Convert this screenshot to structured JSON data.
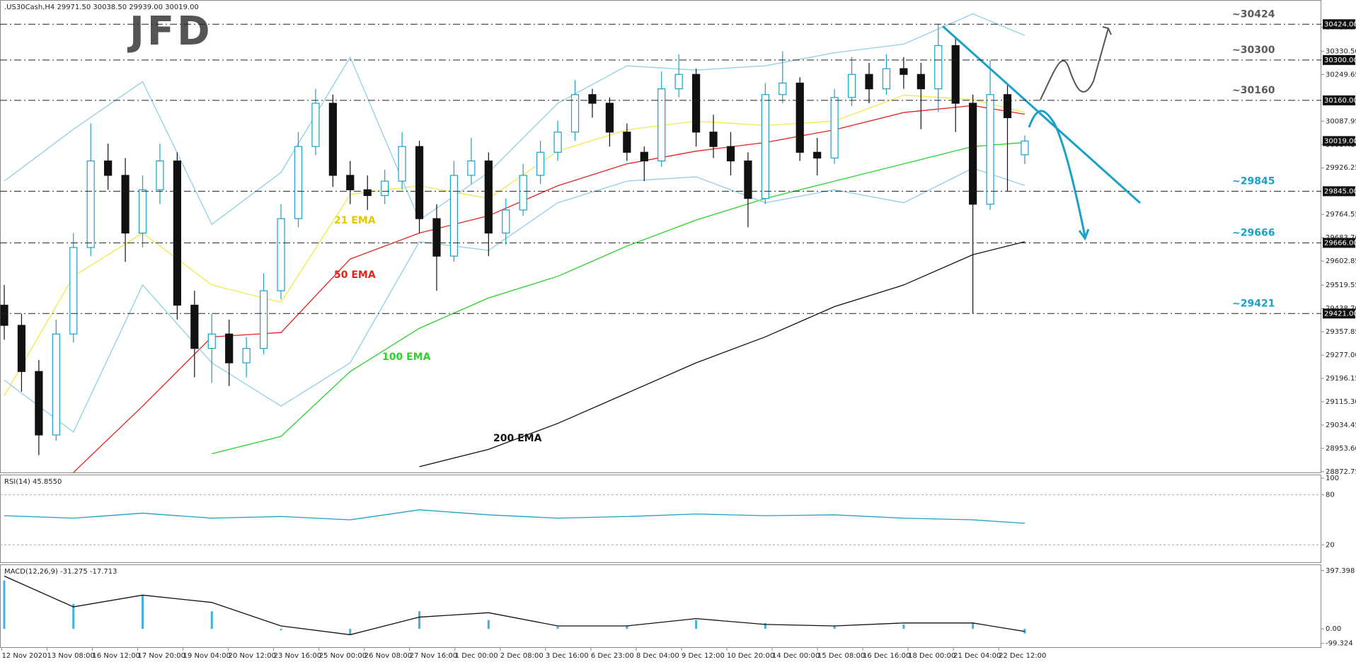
{
  "chart_data": [
    {
      "type": "candlestick",
      "header": ".US30Cash,H4  29971.50 30038.50 29939.00 30019.00",
      "logo": "JFD",
      "ylim": [
        28870,
        30508
      ],
      "yticks": [
        {
          "value": 30413.5,
          "label": "30413.50"
        },
        {
          "value": 30330.5,
          "label": "30330.50"
        },
        {
          "value": 30249.65,
          "label": "30249.65"
        },
        {
          "value": 30087.95,
          "label": "30087.95"
        },
        {
          "value": 30007.1,
          "label": "30007.10"
        },
        {
          "value": 29926.25,
          "label": "29926.25"
        },
        {
          "value": 29764.55,
          "label": "29764.55"
        },
        {
          "value": 29683.7,
          "label": "29683.70"
        },
        {
          "value": 29602.85,
          "label": "29602.85"
        },
        {
          "value": 29519.55,
          "label": "29519.55"
        },
        {
          "value": 29438.7,
          "label": "29438.70"
        },
        {
          "value": 29357.85,
          "label": "29357.85"
        },
        {
          "value": 29277.0,
          "label": "29277.00"
        },
        {
          "value": 29196.15,
          "label": "29196.15"
        },
        {
          "value": 29115.3,
          "label": "29115.30"
        },
        {
          "value": 29034.45,
          "label": "29034.45"
        },
        {
          "value": 28953.6,
          "label": "28953.60"
        },
        {
          "value": 28872.75,
          "label": "28872.75"
        }
      ],
      "up_color": "#1ba1c7",
      "down_color": "#111111",
      "candles": [
        [
          29450,
          29520,
          29330,
          29380
        ],
        [
          29380,
          29420,
          29150,
          29220
        ],
        [
          29220,
          29260,
          28930,
          29000
        ],
        [
          29000,
          29400,
          28980,
          29350
        ],
        [
          29350,
          29700,
          29320,
          29650
        ],
        [
          29650,
          30080,
          29620,
          29950
        ],
        [
          29950,
          30010,
          29850,
          29900
        ],
        [
          29900,
          29960,
          29600,
          29700
        ],
        [
          29700,
          29900,
          29650,
          29850
        ],
        [
          29850,
          30010,
          29800,
          29950
        ],
        [
          29950,
          29980,
          29400,
          29450
        ],
        [
          29450,
          29500,
          29200,
          29300
        ],
        [
          29300,
          29420,
          29180,
          29350
        ],
        [
          29350,
          29400,
          29170,
          29250
        ],
        [
          29250,
          29340,
          29200,
          29300
        ],
        [
          29300,
          29560,
          29280,
          29500
        ],
        [
          29500,
          29800,
          29470,
          29750
        ],
        [
          29750,
          30050,
          29720,
          30000
        ],
        [
          30000,
          30200,
          29970,
          30150
        ],
        [
          30150,
          30180,
          29860,
          29900
        ],
        [
          29900,
          29950,
          29800,
          29850
        ],
        [
          29850,
          29900,
          29780,
          29830
        ],
        [
          29830,
          29920,
          29800,
          29880
        ],
        [
          29880,
          30050,
          29850,
          30000
        ],
        [
          30000,
          30020,
          29700,
          29750
        ],
        [
          29750,
          29800,
          29500,
          29620
        ],
        [
          29620,
          29950,
          29600,
          29900
        ],
        [
          29900,
          30030,
          29870,
          29950
        ],
        [
          29950,
          29980,
          29620,
          29700
        ],
        [
          29700,
          29820,
          29660,
          29780
        ],
        [
          29780,
          29940,
          29760,
          29900
        ],
        [
          29900,
          30020,
          29870,
          29980
        ],
        [
          29980,
          30090,
          29950,
          30050
        ],
        [
          30050,
          30230,
          30020,
          30180
        ],
        [
          30180,
          30200,
          30100,
          30150
        ],
        [
          30150,
          30170,
          30000,
          30050
        ],
        [
          30050,
          30080,
          29950,
          29980
        ],
        [
          29980,
          30000,
          29880,
          29950
        ],
        [
          29950,
          30260,
          29930,
          30200
        ],
        [
          30200,
          30320,
          30170,
          30250
        ],
        [
          30250,
          30270,
          30000,
          30050
        ],
        [
          30050,
          30110,
          29960,
          30000
        ],
        [
          30000,
          30050,
          29900,
          29950
        ],
        [
          29950,
          29980,
          29720,
          29820
        ],
        [
          29820,
          30220,
          29800,
          30180
        ],
        [
          30180,
          30330,
          30150,
          30220
        ],
        [
          30220,
          30240,
          29950,
          29980
        ],
        [
          29980,
          30030,
          29900,
          29960
        ],
        [
          29960,
          30200,
          29940,
          30170
        ],
        [
          30170,
          30310,
          30140,
          30250
        ],
        [
          30250,
          30290,
          30150,
          30200
        ],
        [
          30200,
          30320,
          30180,
          30270
        ],
        [
          30270,
          30310,
          30200,
          30250
        ],
        [
          30250,
          30290,
          30060,
          30200
        ],
        [
          30200,
          30424,
          30120,
          30350
        ],
        [
          30350,
          30380,
          30050,
          30150
        ],
        [
          30150,
          30180,
          29421,
          29800
        ],
        [
          29800,
          30300,
          29780,
          30180
        ],
        [
          30180,
          30220,
          29845,
          30100
        ],
        [
          29971.5,
          30038.5,
          29939,
          30019
        ]
      ],
      "line_x": [
        0,
        4,
        8,
        12,
        16,
        20,
        24,
        28,
        32,
        36,
        40,
        44,
        48,
        52,
        56,
        59
      ],
      "series": [
        {
          "name": "21 EMA",
          "color": "#f2e84a",
          "values": [
            29136,
            29550,
            29700,
            29520,
            29460,
            29834,
            29864,
            29820,
            29984,
            30058,
            30088,
            30073,
            30088,
            30178,
            30163,
            30118
          ]
        },
        {
          "name": "50 EMA",
          "color": "#e3231e",
          "values": [
            null,
            28870,
            29100,
            29340,
            29355,
            29610,
            29700,
            29760,
            29864,
            29940,
            29984,
            30014,
            30058,
            30118,
            30142,
            30112
          ]
        },
        {
          "name": "100 EMA",
          "color": "#2ed12e",
          "values": [
            null,
            null,
            null,
            28935,
            28995,
            29220,
            29370,
            29475,
            29550,
            29655,
            29745,
            29820,
            29880,
            29940,
            30000,
            30014
          ]
        },
        {
          "name": "200 EMA",
          "color": "#111111",
          "values": [
            null,
            null,
            null,
            null,
            null,
            null,
            28890,
            28950,
            29040,
            29145,
            29250,
            29340,
            29445,
            29520,
            29625,
            29670
          ]
        },
        {
          "color": "#8fcfe8",
          "values": [
            29880,
            30060,
            30225,
            29730,
            29910,
            30310,
            29745,
            29910,
            30150,
            30280,
            30265,
            30280,
            30325,
            30355,
            30460,
            30385
          ]
        },
        {
          "color": "#8fcfe8",
          "values": [
            29190,
            29010,
            29520,
            29250,
            29100,
            29250,
            29670,
            29640,
            29805,
            29880,
            29895,
            29805,
            29850,
            29805,
            29925,
            29865
          ]
        }
      ],
      "levels": [
        {
          "value": 30424,
          "label": "~30424",
          "tag": "30424.00",
          "color": "#5a5a5a"
        },
        {
          "value": 30300,
          "label": "~30300",
          "tag": "30300.00",
          "color": "#5a5a5a"
        },
        {
          "value": 30160,
          "label": "~30160",
          "tag": "30160.00",
          "color": "#5a5a5a"
        },
        {
          "value": 29845,
          "label": "~29845",
          "tag": "29845.00",
          "color": "#1ba1c7"
        },
        {
          "value": 29666,
          "label": "~29666",
          "tag": "29666.00",
          "color": "#1ba1c7"
        },
        {
          "value": 29421,
          "label": "~29421",
          "tag": "29421.00",
          "color": "#1ba1c7"
        }
      ],
      "last": {
        "value": 30019,
        "label": "30019.00"
      },
      "x_labels": [
        "12 Nov 2020",
        "13 Nov 08:00",
        "16 Nov 12:00",
        "17 Nov 20:00",
        "19 Nov 04:00",
        "20 Nov 12:00",
        "23 Nov 16:00",
        "25 Nov 00:00",
        "26 Nov 08:00",
        "27 Nov 16:00",
        "1 Dec 00:00",
        "2 Dec 08:00",
        "3 Dec 16:00",
        "6 Dec 23:00",
        "8 Dec 04:00",
        "9 Dec 12:00",
        "10 Dec 20:00",
        "14 Dec 00:00",
        "15 Dec 08:00",
        "16 Dec 16:00",
        "18 Dec 00:00",
        "21 Dec 04:00",
        "22 Dec 12:00"
      ]
    },
    {
      "type": "line",
      "title": "RSI(14) 45.8550",
      "ylim": [
        0,
        100
      ],
      "yticks": [
        100,
        80,
        20
      ],
      "grid_at": [
        80,
        20
      ],
      "x": [
        0,
        4,
        8,
        12,
        16,
        20,
        24,
        28,
        32,
        36,
        40,
        44,
        48,
        52,
        56,
        59
      ],
      "series": [
        {
          "color": "#1ba1c7",
          "values": [
            55,
            52,
            58,
            52,
            54,
            50,
            62,
            56,
            52,
            54,
            57,
            55,
            56,
            52,
            50,
            45.855
          ]
        }
      ]
    },
    {
      "type": "macd",
      "title": "MACD(12,26,9) -31.275 -17.713",
      "ylim": [
        -120,
        430
      ],
      "yticks": [
        397.398,
        {
          "value": 0,
          "label": "0.00"
        },
        -99.324
      ],
      "x": [
        0,
        4,
        8,
        12,
        16,
        20,
        24,
        28,
        32,
        36,
        40,
        44,
        48,
        52,
        56,
        59
      ],
      "histogram": {
        "color": "#3fb3db",
        "values": [
          330,
          170,
          230,
          120,
          -10,
          -40,
          120,
          60,
          15,
          20,
          60,
          40,
          20,
          30,
          40,
          -31.275
        ]
      },
      "signal": {
        "color": "#111111",
        "values": [
          360,
          150,
          230,
          180,
          20,
          -40,
          80,
          110,
          20,
          20,
          70,
          30,
          20,
          40,
          40,
          -17.713
        ]
      }
    }
  ]
}
